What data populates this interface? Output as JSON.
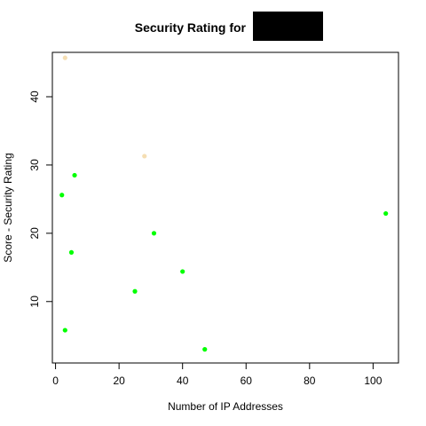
{
  "chart_data": {
    "type": "scatter",
    "title": "Security Rating for",
    "title_redaction": {
      "color": "#000000"
    },
    "xlabel": "Number of IP Addresses",
    "ylabel": "Score - Security Rating",
    "xlim": [
      -1,
      108
    ],
    "ylim": [
      1,
      46.5
    ],
    "x_ticks": [
      0,
      20,
      40,
      60,
      80,
      100
    ],
    "y_ticks": [
      10,
      20,
      30,
      40
    ],
    "grid": false,
    "legend": "none",
    "series": [
      {
        "color": "#00ff00",
        "points": [
          {
            "x": 2,
            "y": 25.6
          },
          {
            "x": 6,
            "y": 28.5
          },
          {
            "x": 5,
            "y": 17.2
          },
          {
            "x": 3,
            "y": 5.8
          },
          {
            "x": 25,
            "y": 11.5
          },
          {
            "x": 31,
            "y": 20.0
          },
          {
            "x": 40,
            "y": 14.4
          },
          {
            "x": 47,
            "y": 3.0
          },
          {
            "x": 104,
            "y": 22.9
          }
        ]
      },
      {
        "color": "#f5deb3",
        "points": [
          {
            "x": 3,
            "y": 45.7
          },
          {
            "x": 28,
            "y": 31.3
          }
        ]
      }
    ]
  }
}
